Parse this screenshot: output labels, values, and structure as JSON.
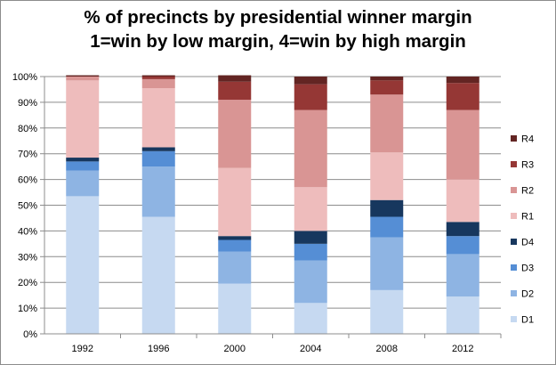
{
  "chart_data": {
    "type": "bar",
    "stacked": true,
    "title_lines": [
      "% of precincts by presidential winner margin",
      "1=win by low margin, 4=win by high margin"
    ],
    "categories": [
      "1992",
      "1996",
      "2000",
      "2004",
      "2008",
      "2012"
    ],
    "ylim": [
      0,
      100
    ],
    "yticks": [
      "0%",
      "10%",
      "20%",
      "30%",
      "40%",
      "50%",
      "60%",
      "70%",
      "80%",
      "90%",
      "100%"
    ],
    "grid": true,
    "legend_position": "right",
    "series": [
      {
        "name": "D1",
        "color": "#c6d9f1",
        "values": [
          53.5,
          45.5,
          19.5,
          12,
          17,
          14.5
        ]
      },
      {
        "name": "D2",
        "color": "#8eb4e3",
        "values": [
          10,
          19.5,
          12.5,
          16.5,
          20.5,
          16.5
        ]
      },
      {
        "name": "D3",
        "color": "#558ed5",
        "values": [
          3.5,
          6,
          4.5,
          6.5,
          8,
          7
        ]
      },
      {
        "name": "D4",
        "color": "#17375e",
        "values": [
          1.5,
          1.5,
          1.5,
          5,
          6.5,
          5.5
        ]
      },
      {
        "name": "R1",
        "color": "#eebcbc",
        "values": [
          30,
          23,
          26.5,
          17,
          18.5,
          16.5
        ]
      },
      {
        "name": "R2",
        "color": "#d99594",
        "values": [
          1.5,
          3.5,
          26.5,
          30,
          22.5,
          27
        ]
      },
      {
        "name": "R3",
        "color": "#953735",
        "values": [
          0,
          1,
          7,
          10,
          5.5,
          10.5
        ]
      },
      {
        "name": "R4",
        "color": "#632523",
        "values": [
          0.5,
          0.5,
          2.5,
          3,
          1.5,
          2.5
        ]
      }
    ],
    "legend_order": [
      "R4",
      "R3",
      "R2",
      "R1",
      "D4",
      "D3",
      "D2",
      "D1"
    ]
  }
}
